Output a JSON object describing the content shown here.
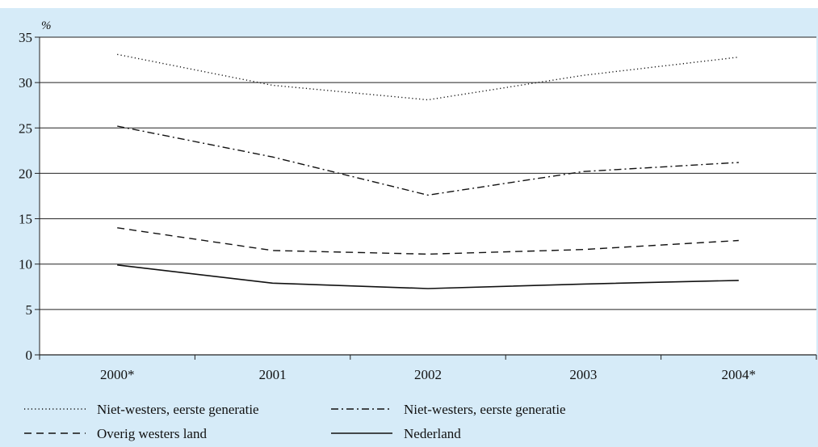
{
  "chart_data": {
    "type": "line",
    "unit_label": "%",
    "categories": [
      "2000*",
      "2001",
      "2002",
      "2003",
      "2004*"
    ],
    "ylim": [
      0,
      35
    ],
    "y_ticks": [
      "0",
      "5",
      "10",
      "15",
      "20",
      "25",
      "30",
      "35"
    ],
    "grid": true,
    "legend_position": "bottom",
    "series": [
      {
        "name": "Niet-westers, eerste generatie",
        "style": "dotted",
        "values": [
          33.1,
          29.7,
          28.1,
          30.8,
          32.8
        ]
      },
      {
        "name": "Niet-westers, eerste generatie",
        "style": "dashdot",
        "values": [
          25.2,
          21.8,
          17.6,
          20.2,
          21.2
        ]
      },
      {
        "name": "Overig westers land",
        "style": "dashed",
        "values": [
          14.0,
          11.5,
          11.1,
          11.6,
          12.6
        ]
      },
      {
        "name": "Nederland",
        "style": "solid",
        "values": [
          9.9,
          7.9,
          7.3,
          7.8,
          8.2
        ]
      }
    ],
    "line_color": "#111111",
    "background_color": "#d6ebf8",
    "plot_background": "#ffffff"
  }
}
